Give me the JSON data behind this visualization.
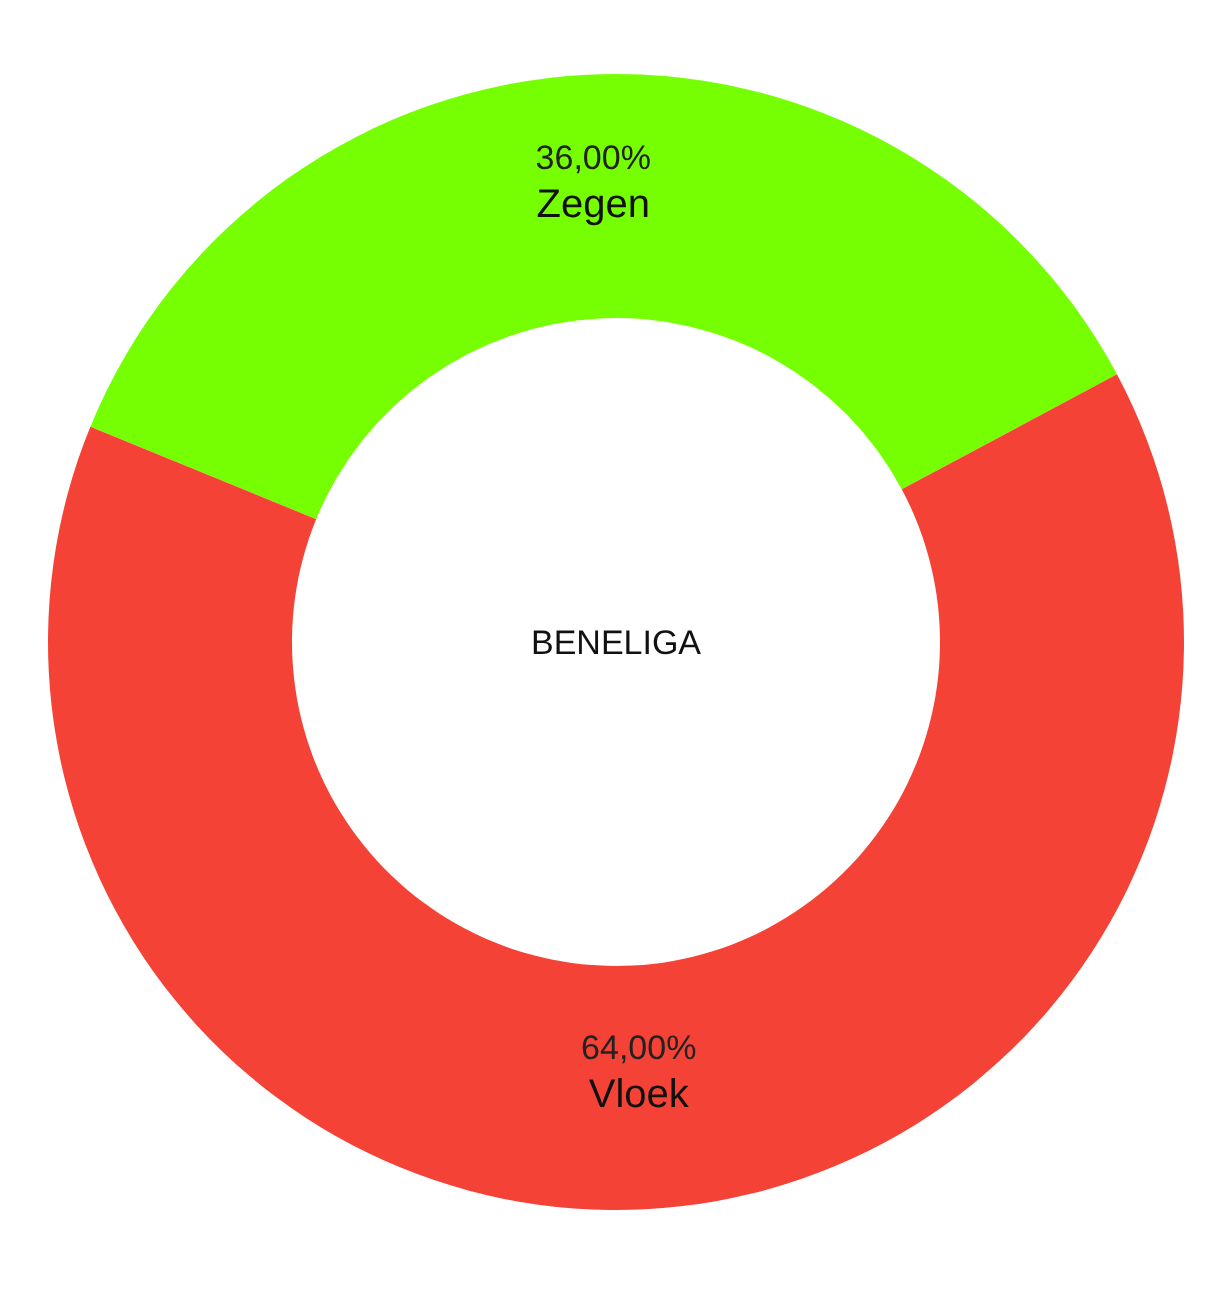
{
  "chart_data": {
    "type": "donut",
    "title": "BENELIGA",
    "categories": [
      "Zegen",
      "Vloek"
    ],
    "values": [
      36,
      64
    ],
    "colors": [
      "#76ff03",
      "#f44336"
    ],
    "value_labels": [
      "36,00%",
      "64,00%"
    ]
  }
}
